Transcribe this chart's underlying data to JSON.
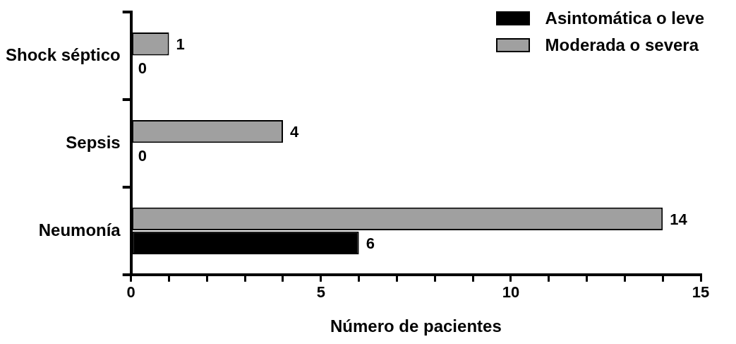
{
  "chart_data": {
    "type": "bar",
    "orientation": "horizontal",
    "xlabel": "Número de pacientes",
    "categories": [
      "Shock séptico",
      "Sepsis",
      "Neumonía"
    ],
    "series": [
      {
        "name": "Asintomática o leve",
        "color": "#000000",
        "values": [
          0,
          0,
          6
        ]
      },
      {
        "name": "Moderada o severa",
        "color": "#a0a0a0",
        "values": [
          1,
          4,
          14
        ]
      }
    ],
    "xlim": [
      0,
      15
    ],
    "xticks": [
      0,
      {
        "value": 1,
        "label": null
      },
      {
        "value": 2,
        "label": null
      },
      {
        "value": 3,
        "label": null
      },
      {
        "value": 4,
        "label": null
      },
      5,
      {
        "value": 6,
        "label": null
      },
      {
        "value": 7,
        "label": null
      },
      {
        "value": 8,
        "label": null
      },
      {
        "value": 9,
        "label": null
      },
      10,
      {
        "value": 11,
        "label": null
      },
      {
        "value": 12,
        "label": null
      },
      {
        "value": 13,
        "label": null
      },
      {
        "value": 14,
        "label": null
      },
      15
    ],
    "grid": false,
    "legend": "top right",
    "data_labels": true
  }
}
